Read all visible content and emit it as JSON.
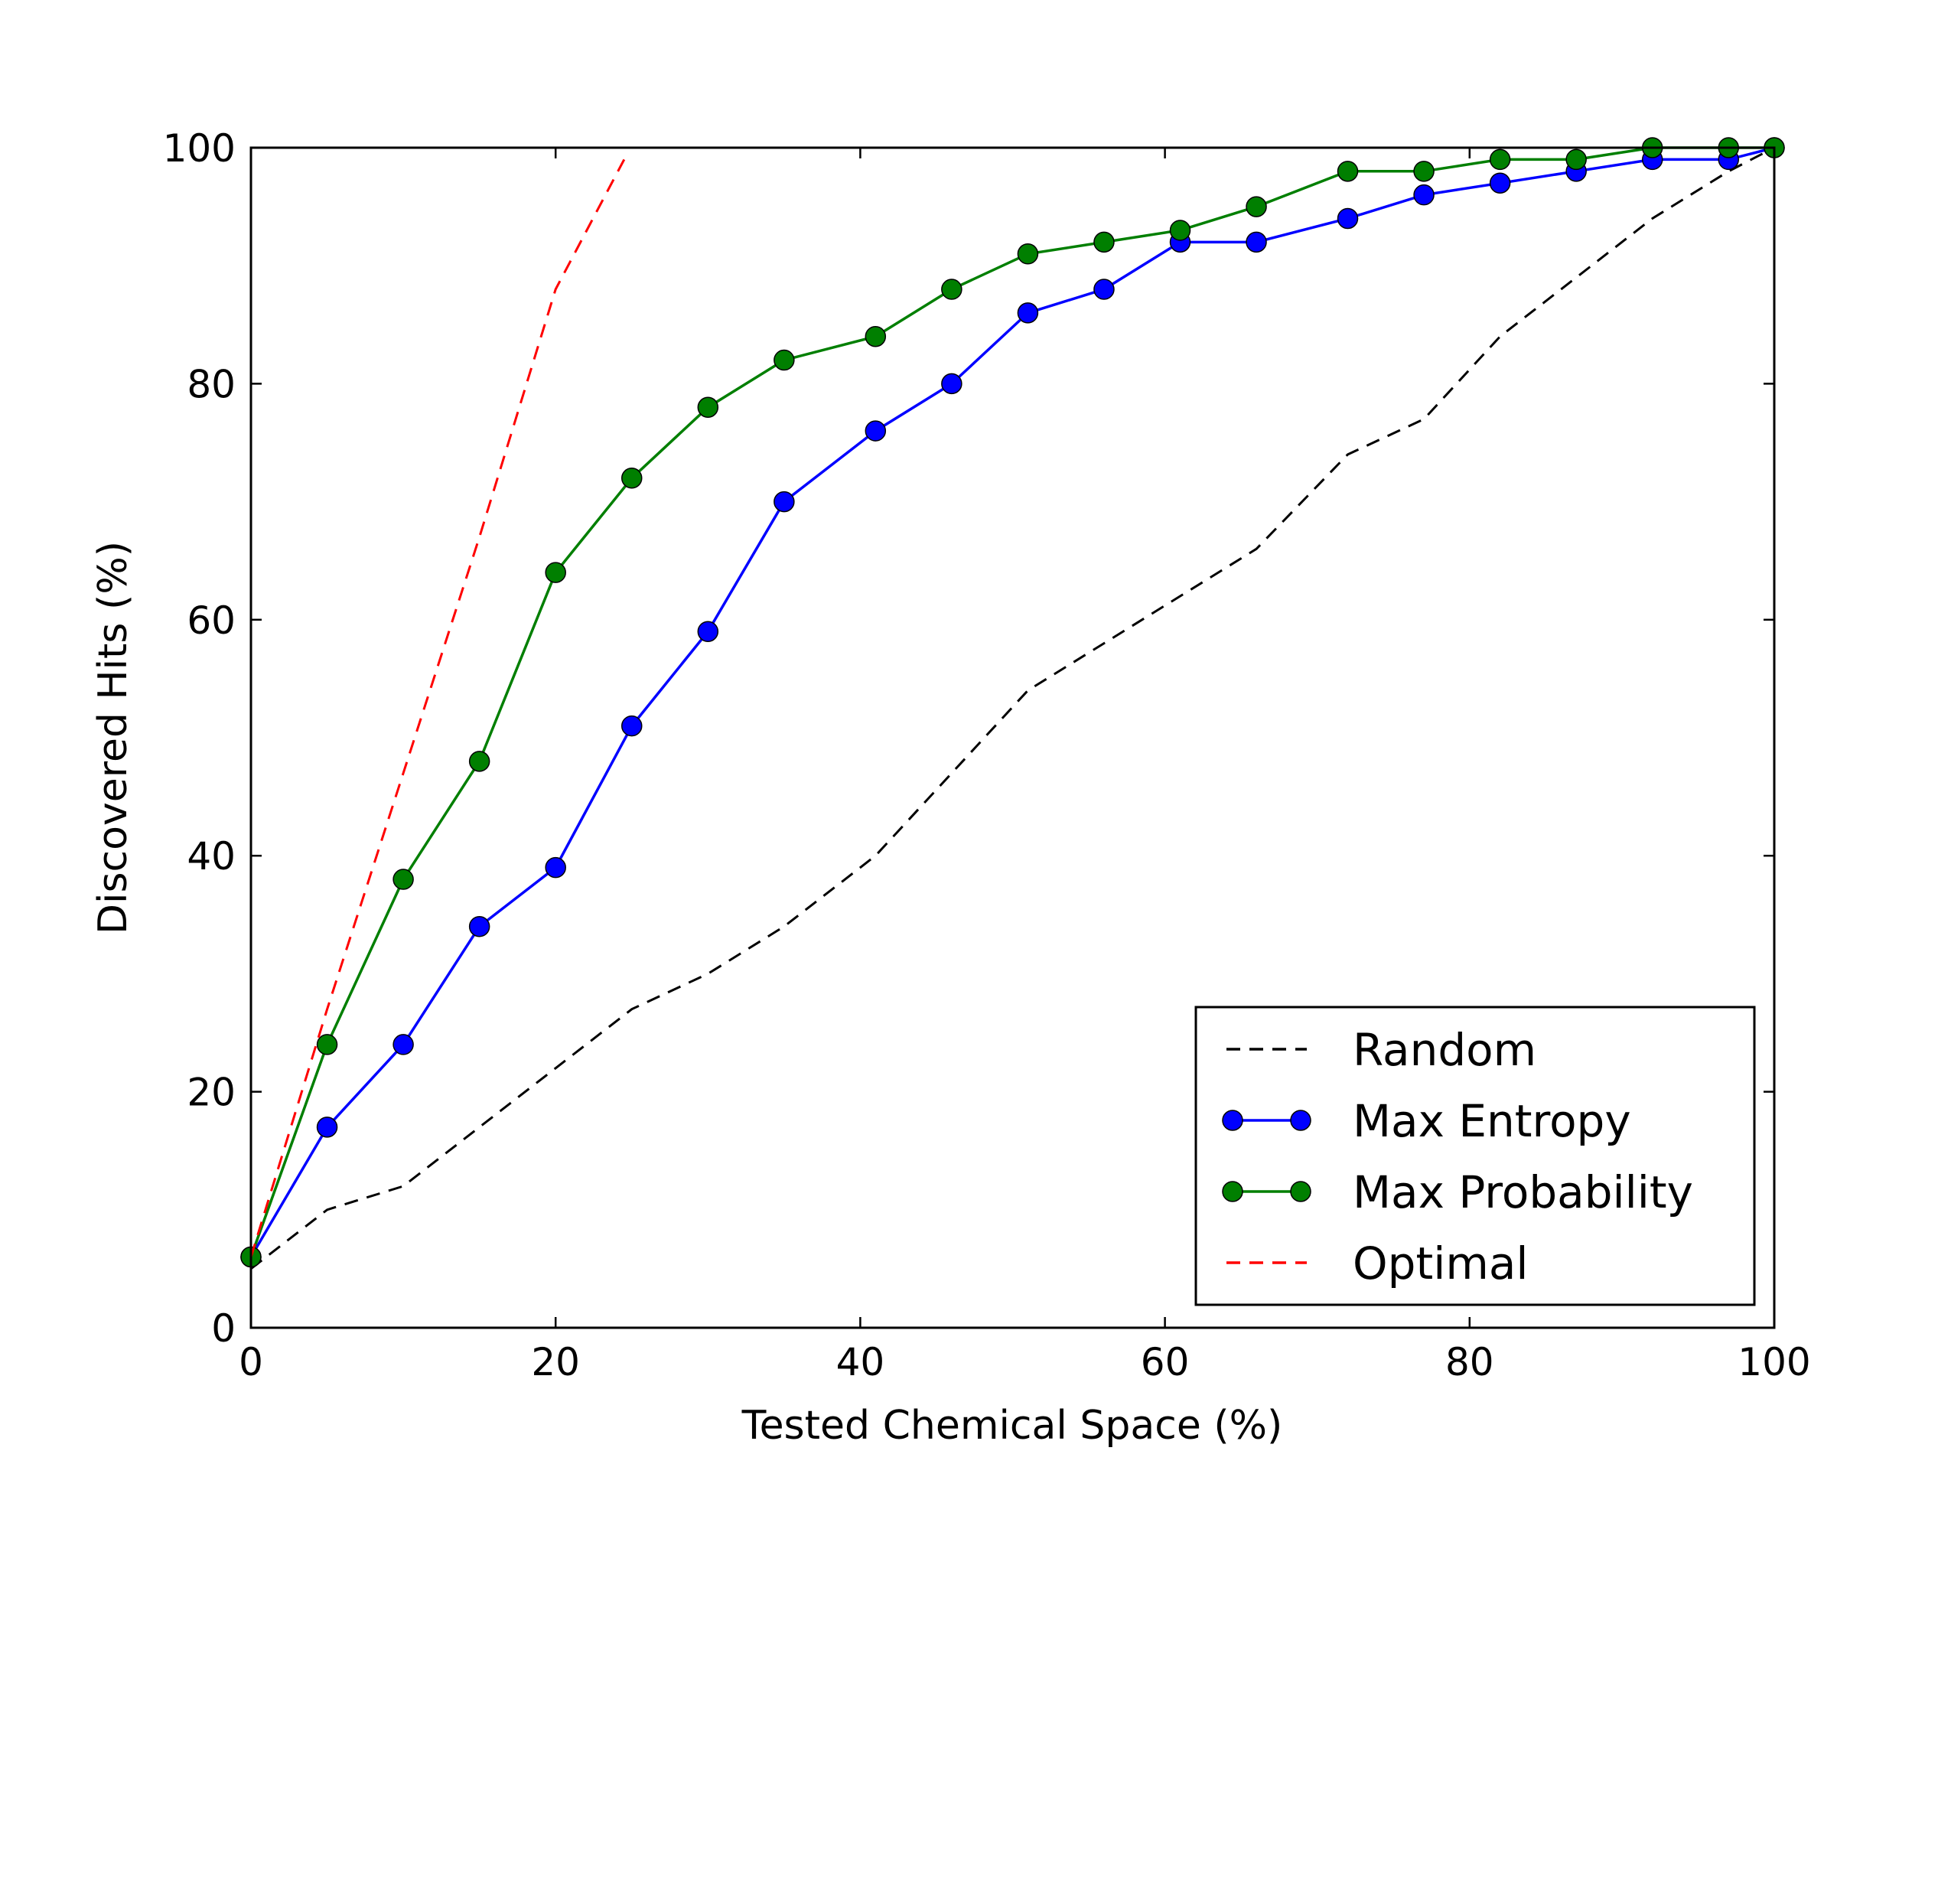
{
  "chart_data": {
    "type": "line",
    "title": "",
    "xlabel": "Tested Chemical Space (%)",
    "ylabel": "Discovered Hits (%)",
    "xlim": [
      0,
      100
    ],
    "ylim": [
      0,
      100
    ],
    "xticks": [
      0,
      20,
      40,
      60,
      80,
      100
    ],
    "yticks": [
      0,
      20,
      40,
      60,
      80,
      100
    ],
    "grid": false,
    "legend_position": "lower-right",
    "series": [
      {
        "name": "Random",
        "color": "#000000",
        "style": "dashed",
        "marker": "none",
        "x": [
          0,
          5,
          10,
          15,
          20,
          25,
          30,
          35,
          41,
          46,
          51,
          56,
          61,
          66,
          72,
          77,
          82,
          87,
          92,
          97,
          100
        ],
        "y": [
          5,
          10,
          12,
          17,
          22,
          27,
          30,
          34,
          40,
          47,
          54,
          58,
          62,
          66,
          74,
          77,
          84,
          89,
          94,
          98,
          100
        ]
      },
      {
        "name": "Max Entropy",
        "color": "#0000ff",
        "style": "solid",
        "marker": "circle",
        "x": [
          0,
          5,
          10,
          15,
          20,
          25,
          30,
          35,
          41,
          46,
          51,
          56,
          61,
          66,
          72,
          77,
          82,
          87,
          92,
          97,
          100
        ],
        "y": [
          6,
          17,
          24,
          34,
          39,
          51,
          59,
          70,
          76,
          80,
          86,
          88,
          92,
          92,
          94,
          96,
          97,
          98,
          99,
          99,
          100
        ]
      },
      {
        "name": "Max Probability",
        "color": "#007f00",
        "style": "solid",
        "marker": "circle",
        "x": [
          0,
          5,
          10,
          15,
          20,
          25,
          30,
          35,
          41,
          46,
          51,
          56,
          61,
          66,
          72,
          77,
          82,
          87,
          92,
          97,
          100
        ],
        "y": [
          6,
          24,
          38,
          48,
          64,
          72,
          78,
          82,
          84,
          88,
          91,
          92,
          93,
          95,
          98,
          98,
          99,
          99,
          100,
          100,
          100
        ]
      },
      {
        "name": "Optimal",
        "color": "#ff0000",
        "style": "dashed",
        "marker": "none",
        "x": [
          0,
          5,
          10,
          15,
          20,
          24.5
        ],
        "y": [
          6,
          27,
          47,
          67,
          88,
          99
        ]
      }
    ]
  }
}
